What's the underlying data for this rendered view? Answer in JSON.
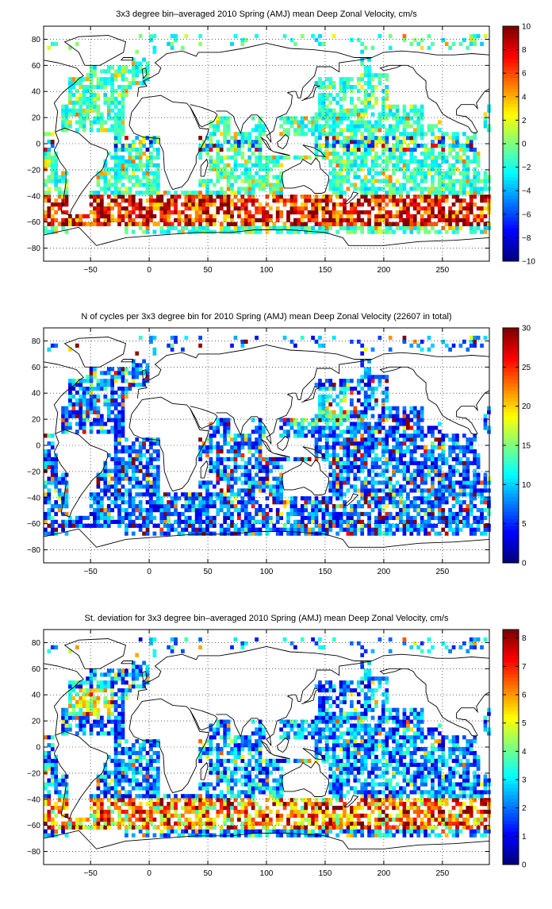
{
  "chart_data": [
    {
      "type": "heatmap",
      "title": "3x3 degree bin–averaged 2010 Spring (AMJ) mean Deep Zonal Velocity, cm/s",
      "xlabel": "",
      "ylabel": "",
      "xlim": [
        -90,
        290
      ],
      "ylim": [
        -90,
        90
      ],
      "x_ticks": [
        -50,
        0,
        50,
        100,
        150,
        200,
        250
      ],
      "y_ticks": [
        80,
        60,
        40,
        20,
        0,
        -20,
        -40,
        -60,
        -80
      ],
      "grid": "dotted",
      "colorbar": {
        "min": -10,
        "max": 10,
        "ticks": [
          10,
          8,
          6,
          4,
          2,
          0,
          -2,
          -4,
          -6,
          -8,
          -10
        ],
        "colormap": "jet"
      },
      "bin_size_deg": 3,
      "field": "velocity"
    },
    {
      "type": "heatmap",
      "title": "N of cycles per 3x3 degree bin for 2010 Spring (AMJ) mean Deep Zonal Velocity (22607 in total)",
      "xlabel": "",
      "ylabel": "",
      "xlim": [
        -90,
        290
      ],
      "ylim": [
        -90,
        90
      ],
      "x_ticks": [
        -50,
        0,
        50,
        100,
        150,
        200,
        250
      ],
      "y_ticks": [
        80,
        60,
        40,
        20,
        0,
        -20,
        -40,
        -60,
        -80
      ],
      "grid": "dotted",
      "colorbar": {
        "min": 0,
        "max": 30,
        "ticks": [
          30,
          25,
          20,
          15,
          10,
          5,
          0
        ],
        "colormap": "jet"
      },
      "bin_size_deg": 3,
      "field": "count"
    },
    {
      "type": "heatmap",
      "title": "St. deviation for 3x3 degree bin–averaged 2010 Spring (AMJ) mean Deep Zonal Velocity, cm/s",
      "xlabel": "",
      "ylabel": "",
      "xlim": [
        -90,
        290
      ],
      "ylim": [
        -90,
        90
      ],
      "x_ticks": [
        -50,
        0,
        50,
        100,
        150,
        200,
        250
      ],
      "y_ticks": [
        80,
        60,
        40,
        20,
        0,
        -20,
        -40,
        -60,
        -80
      ],
      "grid": "dotted",
      "colorbar": {
        "min": 0,
        "max": 8.3,
        "ticks": [
          8,
          7,
          6,
          5,
          4,
          3,
          2,
          1,
          0
        ],
        "colormap": "jet"
      },
      "bin_size_deg": 3,
      "field": "stdev"
    }
  ]
}
